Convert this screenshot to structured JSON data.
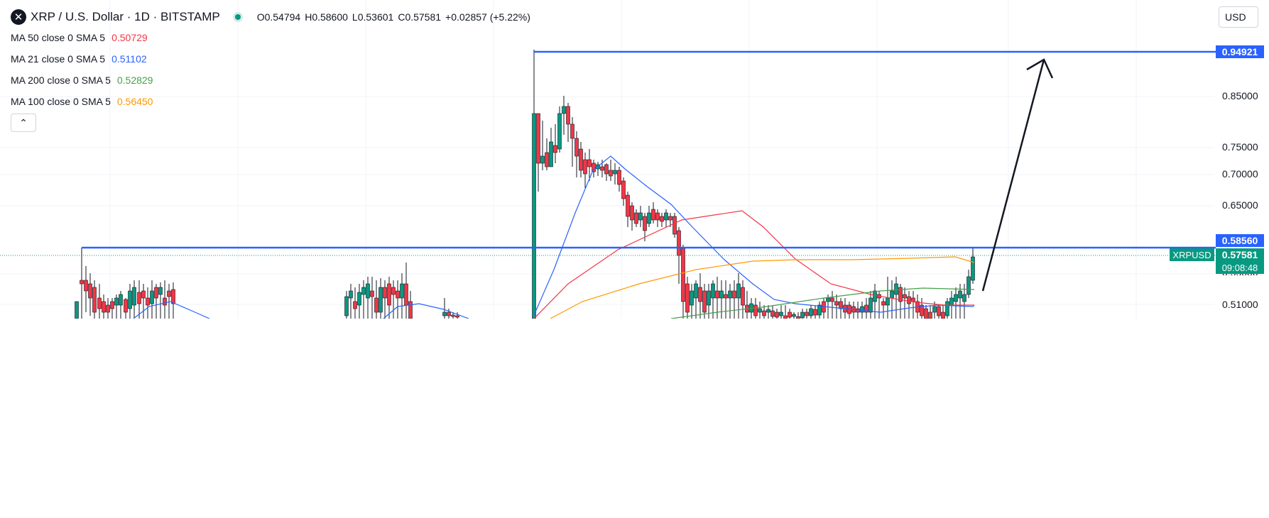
{
  "header": {
    "symbol_icon": "x-icon",
    "title": "XRP / U.S. Dollar · 1D · BITSTAMP",
    "open": "O0.54794",
    "high": "H0.58600",
    "low": "L0.53601",
    "close": "C0.57581",
    "change": "+0.02857 (+5.22%)",
    "currency": "USD"
  },
  "indicators": [
    {
      "label": "MA 50 close 0 SMA 5",
      "value": "0.50729",
      "color": "#f23645"
    },
    {
      "label": "MA 21 close 0 SMA 5",
      "value": "0.51102",
      "color": "#2962ff"
    },
    {
      "label": "MA 200 close 0 SMA 5",
      "value": "0.52829",
      "color": "#43a047"
    },
    {
      "label": "MA 100 close 0 SMA 5",
      "value": "0.56450",
      "color": "#ff9800"
    }
  ],
  "collapse_icon": "chevron-up-icon",
  "price_axis": {
    "ticks": [
      "0.85000",
      "0.75000",
      "0.70000",
      "0.65000",
      "0.51000"
    ],
    "partial_tick": "0.55000",
    "tag_high": "0.94921",
    "tag_level": "0.58560",
    "tag_last": "0.57581",
    "symbol_tag": "XRPUSD",
    "countdown": "09:08:48",
    "colors": {
      "level_line": "#2962ff",
      "last_price": "#089981",
      "up": "#089981",
      "down": "#f23645"
    }
  },
  "chart_data": {
    "type": "candlestick",
    "symbol": "XRPUSD",
    "interval": "1D",
    "exchange": "BITSTAMP",
    "y_axis_scale": "log",
    "ylim": [
      0.5,
      1.0
    ],
    "horizontal_lines": [
      0.94921,
      0.5856
    ],
    "last_price": 0.57581,
    "annotation": "arrow pointing up from last price to 0.94921 level",
    "series": [
      {
        "name": "MA 50 close 0 SMA 5",
        "last": 0.50729
      },
      {
        "name": "MA 21 close 0 SMA 5",
        "last": 0.51102
      },
      {
        "name": "MA 200 close 0 SMA 5",
        "last": 0.52829
      },
      {
        "name": "MA 100 close 0 SMA 5",
        "last": 0.5645
      }
    ]
  }
}
